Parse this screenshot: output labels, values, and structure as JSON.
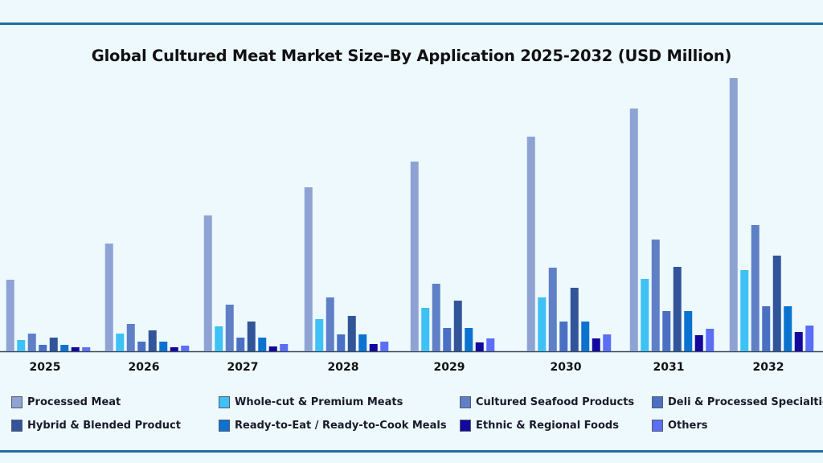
{
  "chart_data": {
    "type": "bar",
    "title": "Global Cultured Meat Market Size-By Application 2025-2032 (USD Million)",
    "xlabel": "",
    "ylabel": "",
    "grid": false,
    "legend_position": "bottom",
    "categories": [
      "2025",
      "2026",
      "2027",
      "2028",
      "2029",
      "2030",
      "2031",
      "2032"
    ],
    "ylim": [
      0,
      340
    ],
    "series": [
      {
        "name": "Processed Meat",
        "color": "#8ea3d4",
        "values": [
          89,
          134,
          169,
          204,
          236,
          267,
          302,
          340
        ]
      },
      {
        "name": "Whole-cut & Premium Meats",
        "color": "#3ec1f5",
        "values": [
          14,
          22,
          31,
          40,
          54,
          67,
          90,
          101
        ]
      },
      {
        "name": "Cultured Seafood Products",
        "color": "#5f80c6",
        "values": [
          22,
          34,
          58,
          67,
          84,
          104,
          139,
          157
        ]
      },
      {
        "name": "Deli & Processed Specialties",
        "color": "#4a70c4",
        "values": [
          8,
          12,
          17,
          21,
          29,
          37,
          50,
          56
        ]
      },
      {
        "name": "Hybrid & Blended Product",
        "color": "#32559a",
        "values": [
          17,
          26,
          37,
          44,
          63,
          79,
          105,
          119
        ]
      },
      {
        "name": "Ready-to-Eat / Ready-to-Cook Meals",
        "color": "#0b72d0",
        "values": [
          8,
          12,
          17,
          21,
          29,
          37,
          50,
          56
        ]
      },
      {
        "name": "Ethnic & Regional Foods",
        "color": "#13079e",
        "values": [
          5,
          5,
          6,
          9,
          11,
          16,
          20,
          24
        ]
      },
      {
        "name": "Others",
        "color": "#5b6ef5",
        "values": [
          5,
          7,
          9,
          12,
          16,
          21,
          28,
          32
        ]
      }
    ]
  }
}
